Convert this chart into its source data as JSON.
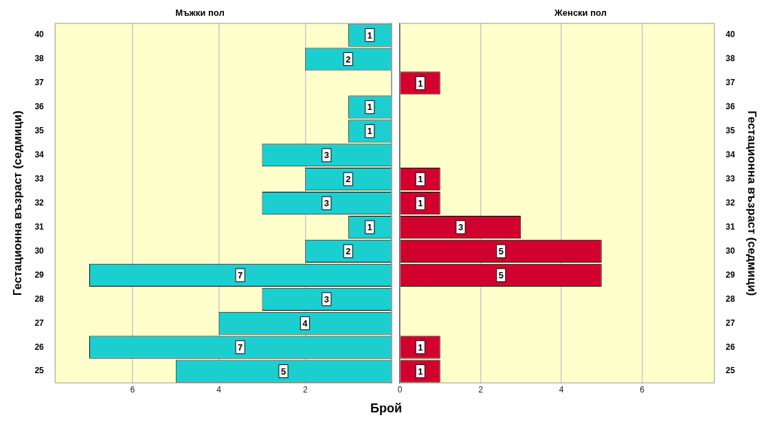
{
  "chart_data": [
    {
      "type": "bar",
      "orientation": "horizontal",
      "title": "Мъжки пол",
      "xlabel": "Брой",
      "ylabel": "Гестационна възраст (седмици)",
      "categories": [
        "40",
        "38",
        "37",
        "36",
        "35",
        "34",
        "33",
        "32",
        "31",
        "30",
        "29",
        "28",
        "27",
        "26",
        "25"
      ],
      "values": [
        1,
        2,
        null,
        1,
        1,
        3,
        2,
        3,
        1,
        2,
        7,
        3,
        4,
        7,
        5
      ],
      "color": "#1ccfcf",
      "xlim": [
        7.8,
        0
      ],
      "xticks": [
        {
          "value": 0,
          "label": null
        },
        2,
        4,
        6
      ],
      "grid": "x",
      "data_labels": true
    },
    {
      "type": "bar",
      "orientation": "horizontal",
      "title": "Женски пол",
      "y2label": "Гестационна възраст (седмици)",
      "categories": [
        "40",
        "38",
        "37",
        "36",
        "35",
        "34",
        "33",
        "32",
        "31",
        "30",
        "29",
        "28",
        "27",
        "26",
        "25"
      ],
      "values": [
        null,
        null,
        1,
        null,
        null,
        null,
        1,
        1,
        3,
        5,
        5,
        null,
        null,
        1,
        1
      ],
      "color": "#d2002e",
      "xlim": [
        0,
        7.8
      ],
      "xticks": [
        0,
        2,
        4,
        6
      ],
      "grid": "x",
      "data_labels": true
    }
  ]
}
